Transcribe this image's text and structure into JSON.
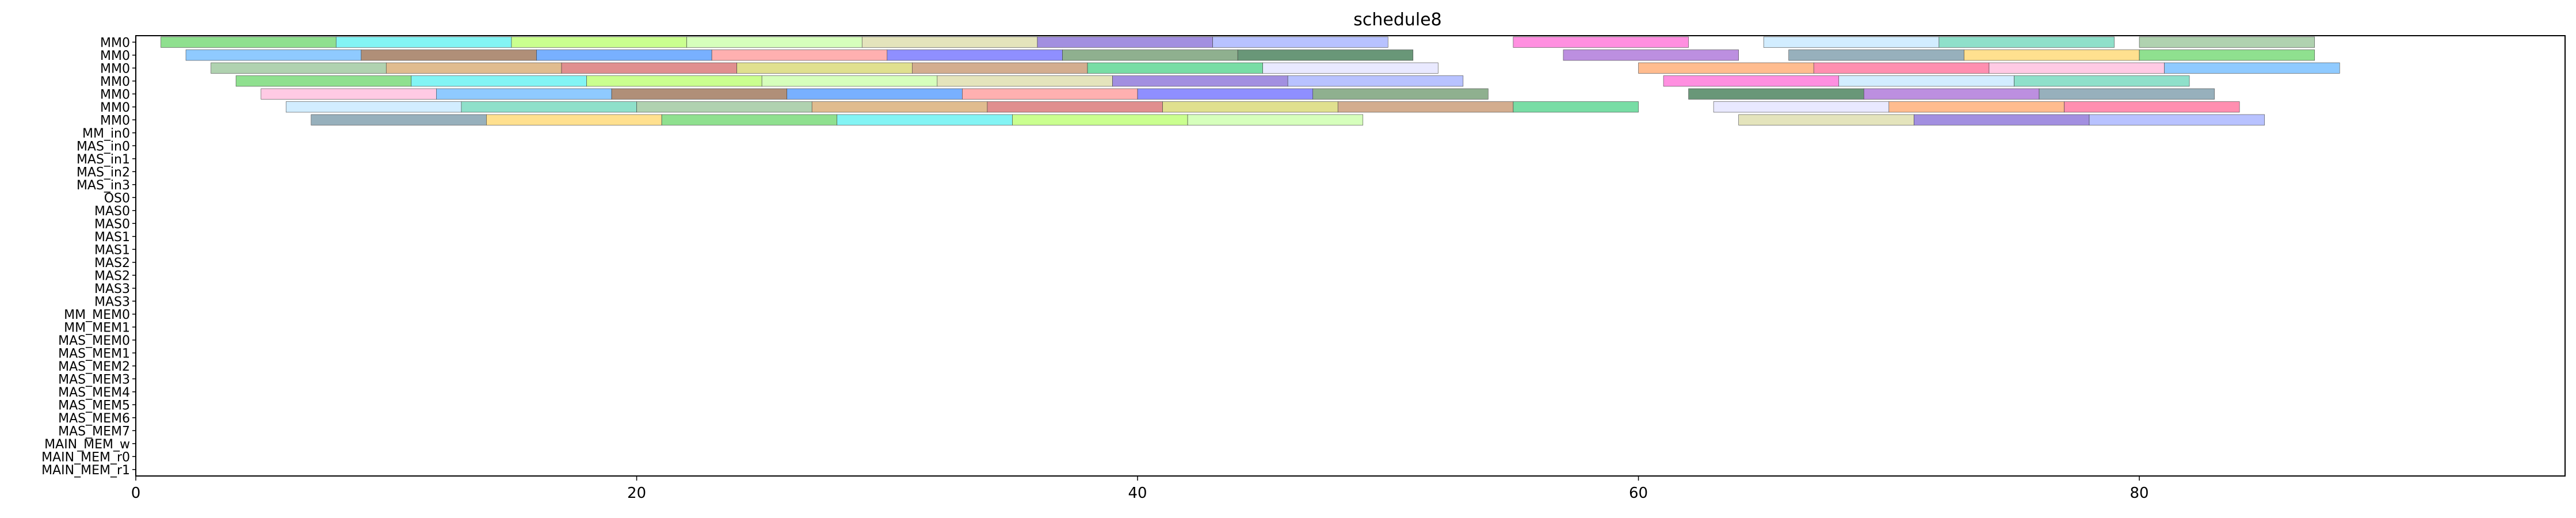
{
  "chart_data": {
    "type": "gantt",
    "title": "schedule8",
    "xlabel": "",
    "ylabel": "",
    "xlim": [
      0,
      97
    ],
    "x_ticks": [
      0,
      20,
      40,
      60,
      80
    ],
    "grid": false,
    "rows": [
      "MM0",
      "MM0",
      "MM0",
      "MM0",
      "MM0",
      "MM0",
      "MM0",
      "MM_in0",
      "MAS_in0",
      "MAS_in1",
      "MAS_in2",
      "MAS_in3",
      "OS0",
      "MAS0",
      "MAS0",
      "MAS1",
      "MAS1",
      "MAS2",
      "MAS2",
      "MAS3",
      "MAS3",
      "MM_MEM0",
      "MM_MEM1",
      "MAS_MEM0",
      "MAS_MEM1",
      "MAS_MEM2",
      "MAS_MEM3",
      "MAS_MEM4",
      "MAS_MEM5",
      "MAS_MEM6",
      "MAS_MEM7",
      "MAIN_MEM_w",
      "MAIN_MEM_r0",
      "MAIN_MEM_r1"
    ],
    "palette": [
      "#5fd35f",
      "#d3d35f",
      "#2a6b3f",
      "#5fd3b4",
      "#3f8fff",
      "#7b5fd3",
      "#ff5f8f",
      "#4ff0f0",
      "#c08a5f",
      "#a05fd3",
      "#8fbf8f",
      "#ff8f8f",
      "#9aa8ff",
      "#ffb3d9",
      "#b4ff5f",
      "#3fcf7f",
      "#6b8f9f",
      "#d3a05f",
      "#5f5fff",
      "#ff5fd3",
      "#5fb4ff",
      "#c5ff9f",
      "#e0e0ff",
      "#ffd35f",
      "#d35f5f",
      "#5f8f5f",
      "#bfe6ff",
      "#8f5f3f",
      "#d9d9a0",
      "#ff9f5f"
    ],
    "tasks": [
      {
        "row": 0,
        "start": 1,
        "end": 8
      },
      {
        "row": 0,
        "start": 8,
        "end": 15
      },
      {
        "row": 0,
        "start": 15,
        "end": 22
      },
      {
        "row": 0,
        "start": 22,
        "end": 29
      },
      {
        "row": 0,
        "start": 29,
        "end": 36
      },
      {
        "row": 0,
        "start": 36,
        "end": 43
      },
      {
        "row": 0,
        "start": 43,
        "end": 50
      },
      {
        "row": 0,
        "start": 55,
        "end": 62
      },
      {
        "row": 0,
        "start": 65,
        "end": 72
      },
      {
        "row": 0,
        "start": 72,
        "end": 79
      },
      {
        "row": 0,
        "start": 80,
        "end": 87
      },
      {
        "row": 1,
        "start": 2,
        "end": 9
      },
      {
        "row": 1,
        "start": 9,
        "end": 16
      },
      {
        "row": 1,
        "start": 16,
        "end": 23
      },
      {
        "row": 1,
        "start": 23,
        "end": 30
      },
      {
        "row": 1,
        "start": 30,
        "end": 37
      },
      {
        "row": 1,
        "start": 37,
        "end": 44
      },
      {
        "row": 1,
        "start": 44,
        "end": 51
      },
      {
        "row": 1,
        "start": 57,
        "end": 64
      },
      {
        "row": 1,
        "start": 66,
        "end": 73
      },
      {
        "row": 1,
        "start": 73,
        "end": 80
      },
      {
        "row": 1,
        "start": 80,
        "end": 87
      },
      {
        "row": 2,
        "start": 3,
        "end": 10
      },
      {
        "row": 2,
        "start": 10,
        "end": 17
      },
      {
        "row": 2,
        "start": 17,
        "end": 24
      },
      {
        "row": 2,
        "start": 24,
        "end": 31
      },
      {
        "row": 2,
        "start": 31,
        "end": 38
      },
      {
        "row": 2,
        "start": 38,
        "end": 45
      },
      {
        "row": 2,
        "start": 45,
        "end": 52
      },
      {
        "row": 2,
        "start": 60,
        "end": 67
      },
      {
        "row": 2,
        "start": 67,
        "end": 74
      },
      {
        "row": 2,
        "start": 74,
        "end": 81
      },
      {
        "row": 2,
        "start": 81,
        "end": 88
      },
      {
        "row": 3,
        "start": 4,
        "end": 11
      },
      {
        "row": 3,
        "start": 11,
        "end": 18
      },
      {
        "row": 3,
        "start": 18,
        "end": 25
      },
      {
        "row": 3,
        "start": 25,
        "end": 32
      },
      {
        "row": 3,
        "start": 32,
        "end": 39
      },
      {
        "row": 3,
        "start": 39,
        "end": 46
      },
      {
        "row": 3,
        "start": 46,
        "end": 53
      },
      {
        "row": 3,
        "start": 61,
        "end": 68
      },
      {
        "row": 3,
        "start": 68,
        "end": 75
      },
      {
        "row": 3,
        "start": 75,
        "end": 82
      },
      {
        "row": 4,
        "start": 5,
        "end": 12
      },
      {
        "row": 4,
        "start": 12,
        "end": 19
      },
      {
        "row": 4,
        "start": 19,
        "end": 26
      },
      {
        "row": 4,
        "start": 26,
        "end": 33
      },
      {
        "row": 4,
        "start": 33,
        "end": 40
      },
      {
        "row": 4,
        "start": 40,
        "end": 47
      },
      {
        "row": 4,
        "start": 47,
        "end": 54
      },
      {
        "row": 4,
        "start": 62,
        "end": 69
      },
      {
        "row": 4,
        "start": 69,
        "end": 76
      },
      {
        "row": 4,
        "start": 76,
        "end": 83
      },
      {
        "row": 5,
        "start": 6,
        "end": 13
      },
      {
        "row": 5,
        "start": 13,
        "end": 20
      },
      {
        "row": 5,
        "start": 20,
        "end": 27
      },
      {
        "row": 5,
        "start": 27,
        "end": 34
      },
      {
        "row": 5,
        "start": 34,
        "end": 41
      },
      {
        "row": 5,
        "start": 41,
        "end": 48
      },
      {
        "row": 5,
        "start": 48,
        "end": 55
      },
      {
        "row": 5,
        "start": 55,
        "end": 60
      },
      {
        "row": 5,
        "start": 63,
        "end": 70
      },
      {
        "row": 5,
        "start": 70,
        "end": 77
      },
      {
        "row": 5,
        "start": 77,
        "end": 84
      },
      {
        "row": 6,
        "start": 7,
        "end": 14
      },
      {
        "row": 6,
        "start": 14,
        "end": 21
      },
      {
        "row": 6,
        "start": 21,
        "end": 28
      },
      {
        "row": 6,
        "start": 28,
        "end": 35
      },
      {
        "row": 6,
        "start": 35,
        "end": 42
      },
      {
        "row": 6,
        "start": 42,
        "end": 49
      },
      {
        "row": 6,
        "start": 64,
        "end": 71
      },
      {
        "row": 6,
        "start": 71,
        "end": 78
      },
      {
        "row": 6,
        "start": 78,
        "end": 85
      }
    ]
  }
}
